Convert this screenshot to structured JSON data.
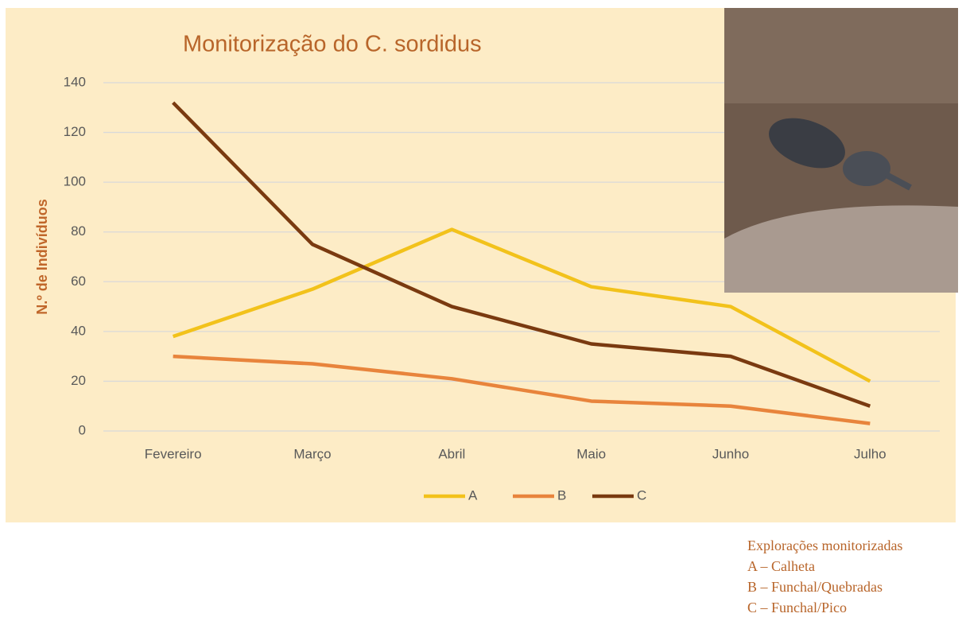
{
  "chart_data": {
    "type": "line",
    "title": "Monitorização do C. sordidus",
    "y_label": "N.º de Indivíduos",
    "categories": [
      "Fevereiro",
      "Março",
      "Abril",
      "Maio",
      "Junho",
      "Julho"
    ],
    "series": [
      {
        "name": "A",
        "color": "#f2c21b",
        "values": [
          38,
          57,
          81,
          58,
          50,
          20
        ]
      },
      {
        "name": "B",
        "color": "#e8843c",
        "values": [
          30,
          27,
          21,
          12,
          10,
          3
        ]
      },
      {
        "name": "C",
        "color": "#7a3a10",
        "values": [
          132,
          75,
          50,
          35,
          30,
          10
        ]
      }
    ],
    "ylim": [
      0,
      140
    ],
    "yticks": [
      0,
      20,
      40,
      60,
      80,
      100,
      120,
      140
    ],
    "grid": true,
    "legend": "bottom",
    "annotations": [
      "Explorações monitorizadas",
      "A – Calheta",
      "B – Funchal/Quebradas",
      "C – Funchal/Pico"
    ]
  }
}
